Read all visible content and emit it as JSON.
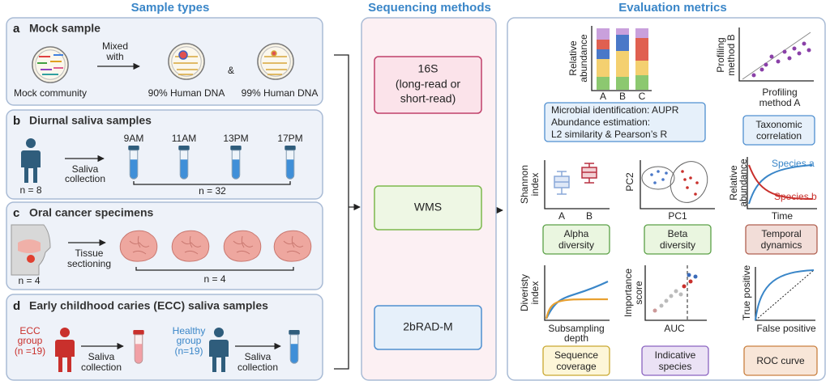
{
  "headers": {
    "sample_types": "Sample types",
    "sequencing_methods": "Sequencing methods",
    "evaluation_metrics": "Evaluation metrics"
  },
  "panel_a": {
    "letter": "a",
    "title": "Mock sample",
    "mock_community": "Mock community",
    "mixed_with": [
      "Mixed",
      "with"
    ],
    "and": "&",
    "human_90": "90% Human DNA",
    "human_99": "99% Human DNA"
  },
  "panel_b": {
    "letter": "b",
    "title": "Diurnal saliva samples",
    "collection": [
      "Saliva",
      "collection"
    ],
    "subjects": "n = 8",
    "times": [
      "9AM",
      "11AM",
      "13PM",
      "17PM"
    ],
    "samples": "n = 32"
  },
  "panel_c": {
    "letter": "c",
    "title": "Oral cancer specimens",
    "sectioning": [
      "Tissue",
      "sectioning"
    ],
    "subjects": "n = 4",
    "samples": "n = 4"
  },
  "panel_d": {
    "letter": "d",
    "title": "Early childhood caries (ECC) saliva samples",
    "ecc_group": [
      "ECC",
      "group",
      "(n =19)"
    ],
    "ecc_collection": [
      "Saliva",
      "collection"
    ],
    "healthy_group": [
      "Healthy",
      "group",
      "(n=19)"
    ],
    "healthy_collection": [
      "Saliva",
      "collection"
    ]
  },
  "methods": {
    "s16": [
      "16S",
      "(long-read or",
      "short-read)"
    ],
    "wms": "WMS",
    "bradm": "2bRAD-M"
  },
  "metrics": {
    "abundance_plot": {
      "y_label": [
        "Relative",
        "abundance"
      ],
      "categories": [
        "A",
        "B",
        "C"
      ]
    },
    "identification": [
      "Microbial identification: AUPR",
      "Abundance estimation:",
      "L2 similarity & Pearson’s R"
    ],
    "correlation": {
      "y_label": [
        "Profiling",
        "method B"
      ],
      "x_label": [
        "Profiling",
        "method A"
      ],
      "name": [
        "Taxonomic",
        "correlation"
      ]
    },
    "alpha": {
      "y_label": [
        "Shannon",
        "index"
      ],
      "categories": [
        "A",
        "B"
      ],
      "name": [
        "Alpha",
        "diversity"
      ]
    },
    "beta": {
      "y_label": "PC2",
      "x_label": "PC1",
      "name": [
        "Beta",
        "diversity"
      ]
    },
    "temporal": {
      "y_label": [
        "Relative",
        "abundance"
      ],
      "species_a": "Species a",
      "species_b": "Species b",
      "x_label": "Time",
      "name": [
        "Temporal",
        "dynamics"
      ]
    },
    "coverage": {
      "y_label": [
        "Diveristy",
        "index"
      ],
      "x_label": [
        "Subsampling",
        "depth"
      ],
      "name": [
        "Sequence",
        "coverage"
      ]
    },
    "indicative": {
      "y_label": [
        "Importance",
        "score"
      ],
      "x_label": "AUC",
      "name": [
        "Indicative",
        "species"
      ]
    },
    "roc": {
      "y_label": "True positive",
      "x_label": "False positive",
      "name": "ROC curve"
    }
  }
}
